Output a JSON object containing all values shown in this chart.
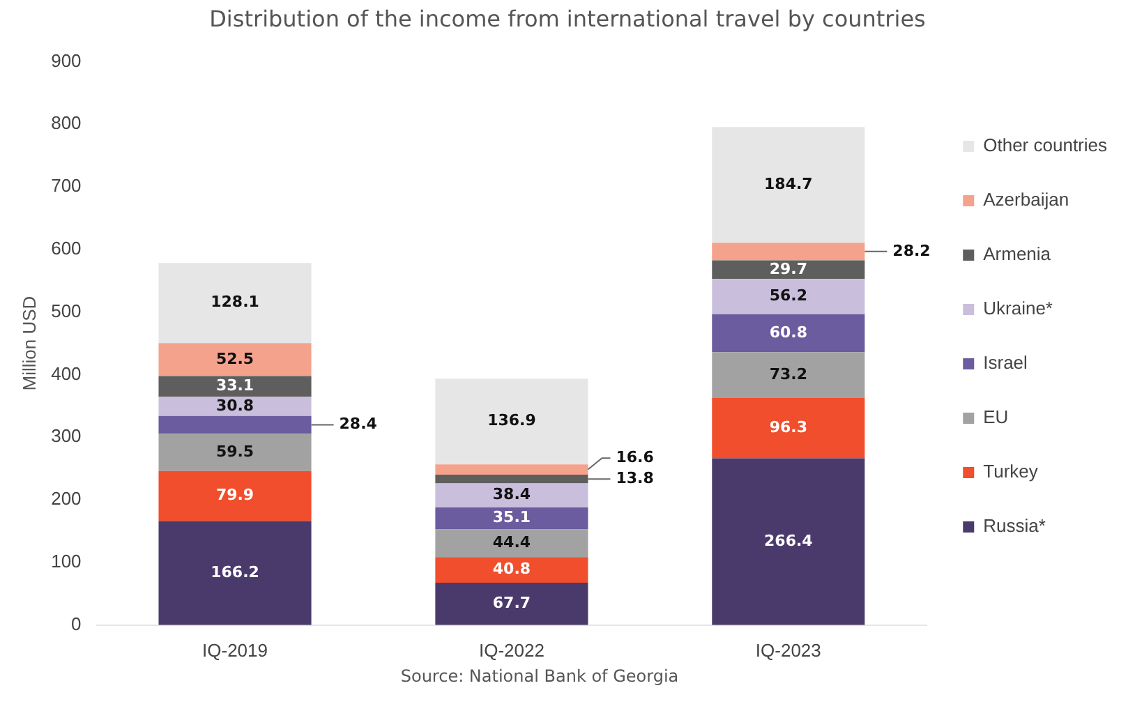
{
  "chart_data": {
    "type": "bar",
    "title": "Distribution of the income from international travel by countries",
    "ylabel": "Million USD",
    "categories": [
      "IQ-2019",
      "IQ-2022",
      "IQ-2023"
    ],
    "stacked": true,
    "series": [
      {
        "name": "Russia*",
        "color": "#4a3a6c",
        "values": [
          166.2,
          67.7,
          266.4
        ]
      },
      {
        "name": "Turkey",
        "color": "#f04e2c",
        "values": [
          79.9,
          40.8,
          96.3
        ]
      },
      {
        "name": "EU",
        "color": "#a2a2a2",
        "values": [
          59.5,
          44.4,
          73.2
        ]
      },
      {
        "name": "Israel",
        "color": "#6b5b9f",
        "values": [
          28.4,
          35.1,
          60.8
        ]
      },
      {
        "name": "Ukraine*",
        "color": "#c9bfdd",
        "values": [
          30.8,
          38.4,
          56.2
        ]
      },
      {
        "name": "Armenia",
        "color": "#5e5e5e",
        "values": [
          33.1,
          13.8,
          29.7
        ]
      },
      {
        "name": "Azerbaijan",
        "color": "#f5a28c",
        "values": [
          52.5,
          16.6,
          28.2
        ]
      },
      {
        "name": "Other countries",
        "color": "#e6e6e6",
        "values": [
          128.1,
          136.9,
          184.7
        ]
      }
    ],
    "ylim": [
      0,
      900
    ],
    "yticks": [
      0,
      100,
      200,
      300,
      400,
      500,
      600,
      700,
      800,
      900
    ],
    "grid": false,
    "legend": "right",
    "data_labels": true,
    "annotations": [
      "Source: National Bank of Georgia"
    ]
  }
}
